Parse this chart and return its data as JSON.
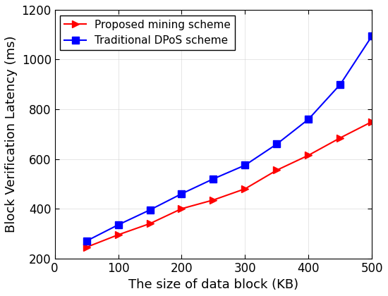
{
  "x": [
    50,
    100,
    150,
    200,
    250,
    300,
    350,
    400,
    450,
    500
  ],
  "proposed": [
    245,
    295,
    340,
    400,
    435,
    480,
    555,
    615,
    685,
    750
  ],
  "traditional": [
    270,
    335,
    395,
    460,
    520,
    575,
    660,
    760,
    900,
    1095
  ],
  "proposed_color": "#FF0000",
  "traditional_color": "#0000FF",
  "proposed_label": "Proposed mining scheme",
  "traditional_label": "Traditional DPoS scheme",
  "xlabel": "The size of data block (KB)",
  "ylabel": "Block Verification Latency (ms)",
  "xlim": [
    0,
    500
  ],
  "ylim": [
    200,
    1200
  ],
  "xticks": [
    0,
    100,
    200,
    300,
    400,
    500
  ],
  "yticks": [
    200,
    400,
    600,
    800,
    1000,
    1200
  ],
  "linewidth": 1.5,
  "markersize": 7,
  "tick_fontsize": 12,
  "label_fontsize": 13,
  "legend_fontsize": 11
}
